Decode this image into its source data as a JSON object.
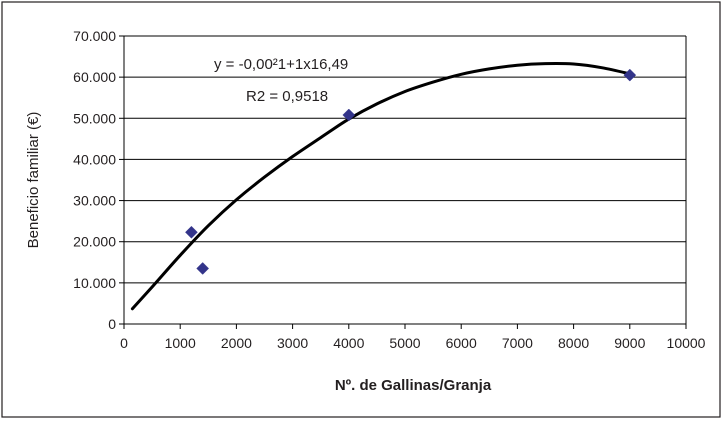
{
  "chart_data": {
    "type": "scatter",
    "xlabel": "Nº. de Gallinas/Granja",
    "ylabel": "Beneficio familiar (€)",
    "xlim": [
      0,
      10000
    ],
    "ylim": [
      0,
      70000
    ],
    "x_ticks": [
      0,
      1000,
      2000,
      3000,
      4000,
      5000,
      6000,
      7000,
      8000,
      9000,
      10000
    ],
    "x_tick_labels": [
      "0",
      "1000",
      "2000",
      "3000",
      "4000",
      "5000",
      "6000",
      "7000",
      "8000",
      "9000",
      "10000"
    ],
    "y_ticks": [
      0,
      10000,
      20000,
      30000,
      40000,
      50000,
      60000,
      70000
    ],
    "y_tick_labels": [
      "0",
      "10.000",
      "20.000",
      "30.000",
      "40.000",
      "50.000",
      "60.000",
      "70.000"
    ],
    "grid": "horizontal",
    "legend": "none",
    "points": [
      {
        "x": 1200,
        "y": 22300
      },
      {
        "x": 1400,
        "y": 13500
      },
      {
        "x": 4000,
        "y": 50800
      },
      {
        "x": 9000,
        "y": 60500
      }
    ],
    "trendline": {
      "type": "polynomial-2",
      "x": [
        150,
        500,
        1000,
        1500,
        2000,
        2500,
        3000,
        3500,
        4000,
        4500,
        5000,
        5500,
        6000,
        6500,
        7000,
        7500,
        8000,
        8500,
        9000
      ],
      "y": [
        3700,
        9000,
        16700,
        23900,
        30200,
        35700,
        40700,
        45300,
        49800,
        53500,
        56500,
        58800,
        60700,
        62000,
        62900,
        63300,
        63200,
        62300,
        60800
      ]
    },
    "annotations": {
      "equation": "y = -0,00²1+1x16,49",
      "r2": "R2 = 0,9518"
    },
    "colors": {
      "marker": "#33348a",
      "curve": "#000000",
      "grid": "#000000",
      "frame": "#231f20"
    }
  }
}
